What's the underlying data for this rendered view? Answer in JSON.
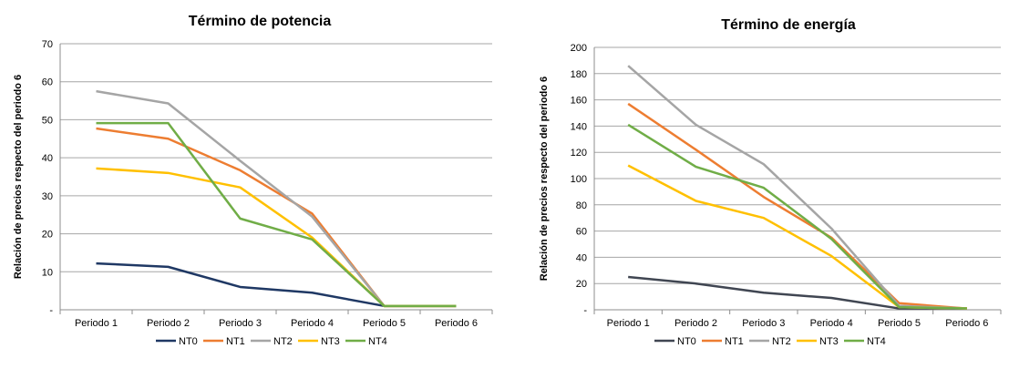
{
  "chart_data": [
    {
      "type": "line",
      "title": "Término de potencia",
      "ylabel": "Relación de precios respecto del periodo 6",
      "xlabel": "",
      "categories": [
        "Periodo 1",
        "Periodo 2",
        "Periodo 3",
        "Periodo 4",
        "Periodo 5",
        "Periodo 6"
      ],
      "ylim": [
        0,
        70
      ],
      "yticks": [
        "-",
        "10",
        "20",
        "30",
        "40",
        "50",
        "60",
        "70"
      ],
      "grid": true,
      "legend": "bottom",
      "series": [
        {
          "name": "NT0",
          "color": "#1f3864",
          "values": [
            12.2,
            11.3,
            6.0,
            4.5,
            1.0,
            1.0
          ]
        },
        {
          "name": "NT1",
          "color": "#ed7d31",
          "values": [
            47.7,
            45.0,
            36.7,
            25.3,
            1.0,
            1.0
          ]
        },
        {
          "name": "NT2",
          "color": "#a5a5a5",
          "values": [
            57.5,
            54.3,
            39.2,
            24.5,
            1.0,
            1.0
          ]
        },
        {
          "name": "NT3",
          "color": "#ffc000",
          "values": [
            37.2,
            36.0,
            32.2,
            19.0,
            1.0,
            1.0
          ]
        },
        {
          "name": "NT4",
          "color": "#70ad47",
          "values": [
            49.1,
            49.1,
            24.0,
            18.5,
            1.0,
            1.0
          ]
        }
      ]
    },
    {
      "type": "line",
      "title": "Término de energía",
      "ylabel": "Relación de precios respecto del periodo 6",
      "xlabel": "",
      "categories": [
        "Periodo 1",
        "Periodo 2",
        "Periodo 3",
        "Periodo 4",
        "Periodo 5",
        "Periodo 6"
      ],
      "ylim": [
        0,
        200
      ],
      "yticks": [
        "-",
        "20",
        "40",
        "60",
        "80",
        "100",
        "120",
        "140",
        "160",
        "180",
        "200"
      ],
      "grid": true,
      "legend": "bottom",
      "series": [
        {
          "name": "NT0",
          "color": "#404652",
          "values": [
            25,
            20,
            13,
            9,
            1,
            1
          ]
        },
        {
          "name": "NT1",
          "color": "#ed7d31",
          "values": [
            157,
            122,
            86,
            55,
            5,
            1
          ]
        },
        {
          "name": "NT2",
          "color": "#a5a5a5",
          "values": [
            186,
            141,
            111,
            62,
            3,
            1
          ]
        },
        {
          "name": "NT3",
          "color": "#ffc000",
          "values": [
            110,
            83,
            70,
            41,
            2,
            1
          ]
        },
        {
          "name": "NT4",
          "color": "#70ad47",
          "values": [
            141,
            109,
            93,
            54,
            2,
            1
          ]
        }
      ]
    }
  ]
}
